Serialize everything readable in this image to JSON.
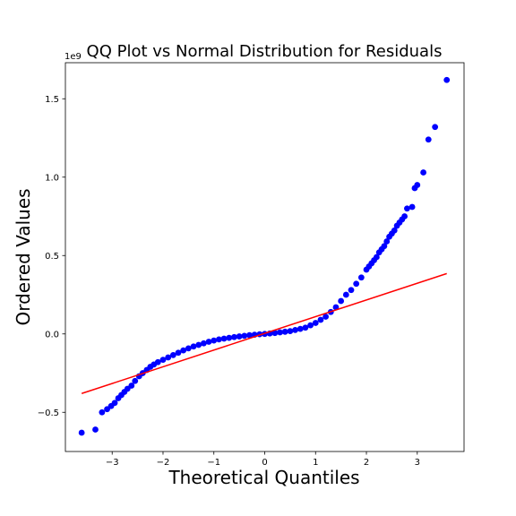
{
  "chart_data": {
    "type": "scatter",
    "title": "QQ Plot vs Normal Distribution for Residuals",
    "xlabel": "Theoretical Quantiles",
    "ylabel": "Ordered Values",
    "y_offset_label": "1e9",
    "xlim": [
      -3.92,
      3.92
    ],
    "ylim": [
      -0.75,
      1.73
    ],
    "x_ticks": [
      -3,
      -2,
      -1,
      0,
      1,
      2,
      3
    ],
    "x_tick_labels": [
      "−3",
      "−2",
      "−1",
      "0",
      "1",
      "2",
      "3"
    ],
    "y_ticks": [
      -0.5,
      0.0,
      0.5,
      1.0,
      1.5
    ],
    "y_tick_labels": [
      "−0.5",
      "0.0",
      "0.5",
      "1.0",
      "1.5"
    ],
    "grid": false,
    "series": [
      {
        "kind": "points",
        "color": "#0000ff",
        "x": [
          -3.6,
          -3.33,
          -3.2,
          -3.1,
          -3.02,
          -2.95,
          -2.88,
          -2.82,
          -2.76,
          -2.7,
          -2.62,
          -2.55,
          -2.47,
          -2.4,
          -2.32,
          -2.25,
          -2.18,
          -2.1,
          -2.0,
          -1.9,
          -1.8,
          -1.7,
          -1.6,
          -1.5,
          -1.4,
          -1.3,
          -1.2,
          -1.1,
          -1.0,
          -0.9,
          -0.8,
          -0.7,
          -0.6,
          -0.5,
          -0.4,
          -0.3,
          -0.2,
          -0.1,
          0.0,
          0.1,
          0.2,
          0.3,
          0.4,
          0.5,
          0.6,
          0.7,
          0.8,
          0.9,
          1.0,
          1.1,
          1.2,
          1.3,
          1.4,
          1.5,
          1.6,
          1.7,
          1.8,
          1.9,
          2.0,
          2.05,
          2.1,
          2.15,
          2.2,
          2.25,
          2.3,
          2.35,
          2.4,
          2.45,
          2.5,
          2.55,
          2.6,
          2.65,
          2.7,
          2.75,
          2.8,
          2.9,
          2.95,
          3.0,
          3.12,
          3.22,
          3.35,
          3.58
        ],
        "y": [
          -0.63,
          -0.61,
          -0.5,
          -0.48,
          -0.46,
          -0.44,
          -0.41,
          -0.39,
          -0.37,
          -0.35,
          -0.33,
          -0.3,
          -0.27,
          -0.25,
          -0.23,
          -0.21,
          -0.195,
          -0.18,
          -0.165,
          -0.15,
          -0.135,
          -0.12,
          -0.105,
          -0.092,
          -0.08,
          -0.07,
          -0.06,
          -0.05,
          -0.042,
          -0.035,
          -0.03,
          -0.025,
          -0.02,
          -0.016,
          -0.012,
          -0.008,
          -0.005,
          -0.002,
          0.0,
          0.003,
          0.006,
          0.01,
          0.014,
          0.018,
          0.025,
          0.032,
          0.04,
          0.055,
          0.07,
          0.09,
          0.11,
          0.14,
          0.17,
          0.21,
          0.25,
          0.28,
          0.32,
          0.36,
          0.41,
          0.43,
          0.45,
          0.47,
          0.49,
          0.52,
          0.54,
          0.56,
          0.59,
          0.62,
          0.64,
          0.66,
          0.69,
          0.71,
          0.73,
          0.75,
          0.8,
          0.81,
          0.93,
          0.95,
          1.03,
          1.24,
          1.32,
          1.62
        ]
      },
      {
        "kind": "line",
        "color": "#ff0000",
        "x": [
          -3.6,
          3.58
        ],
        "y": [
          -0.38,
          0.385
        ]
      }
    ]
  }
}
